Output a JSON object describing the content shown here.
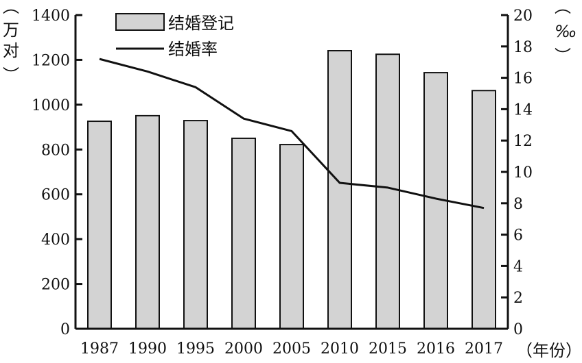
{
  "chart_data": {
    "type": "bar+line",
    "categories": [
      "1987",
      "1990",
      "1995",
      "2000",
      "2005",
      "2010",
      "2015",
      "2016",
      "2017"
    ],
    "series": [
      {
        "name": "结婚登记",
        "type": "bar",
        "axis": "left",
        "values": [
          926,
          951,
          929,
          850,
          822,
          1241,
          1225,
          1143,
          1063
        ],
        "color": "#d3d3d3"
      },
      {
        "name": "结婚率",
        "type": "line",
        "axis": "right",
        "values": [
          17.2,
          16.4,
          15.4,
          13.4,
          12.6,
          9.3,
          9.0,
          8.3,
          7.7
        ],
        "color": "#111111"
      }
    ],
    "ylabel_left": "万对",
    "ylabel_right": "‰",
    "xlabel": "年份",
    "ylim_left": [
      0,
      1400
    ],
    "ylim_right": [
      0,
      20
    ],
    "yticks_left": [
      "0",
      "200",
      "400",
      "600",
      "800",
      "1000",
      "1200",
      "1400"
    ],
    "yticks_right": [
      "0",
      "2",
      "4",
      "6",
      "8",
      "10",
      "12",
      "14",
      "16",
      "18",
      "20"
    ],
    "grid": false,
    "legend": "top-left"
  }
}
